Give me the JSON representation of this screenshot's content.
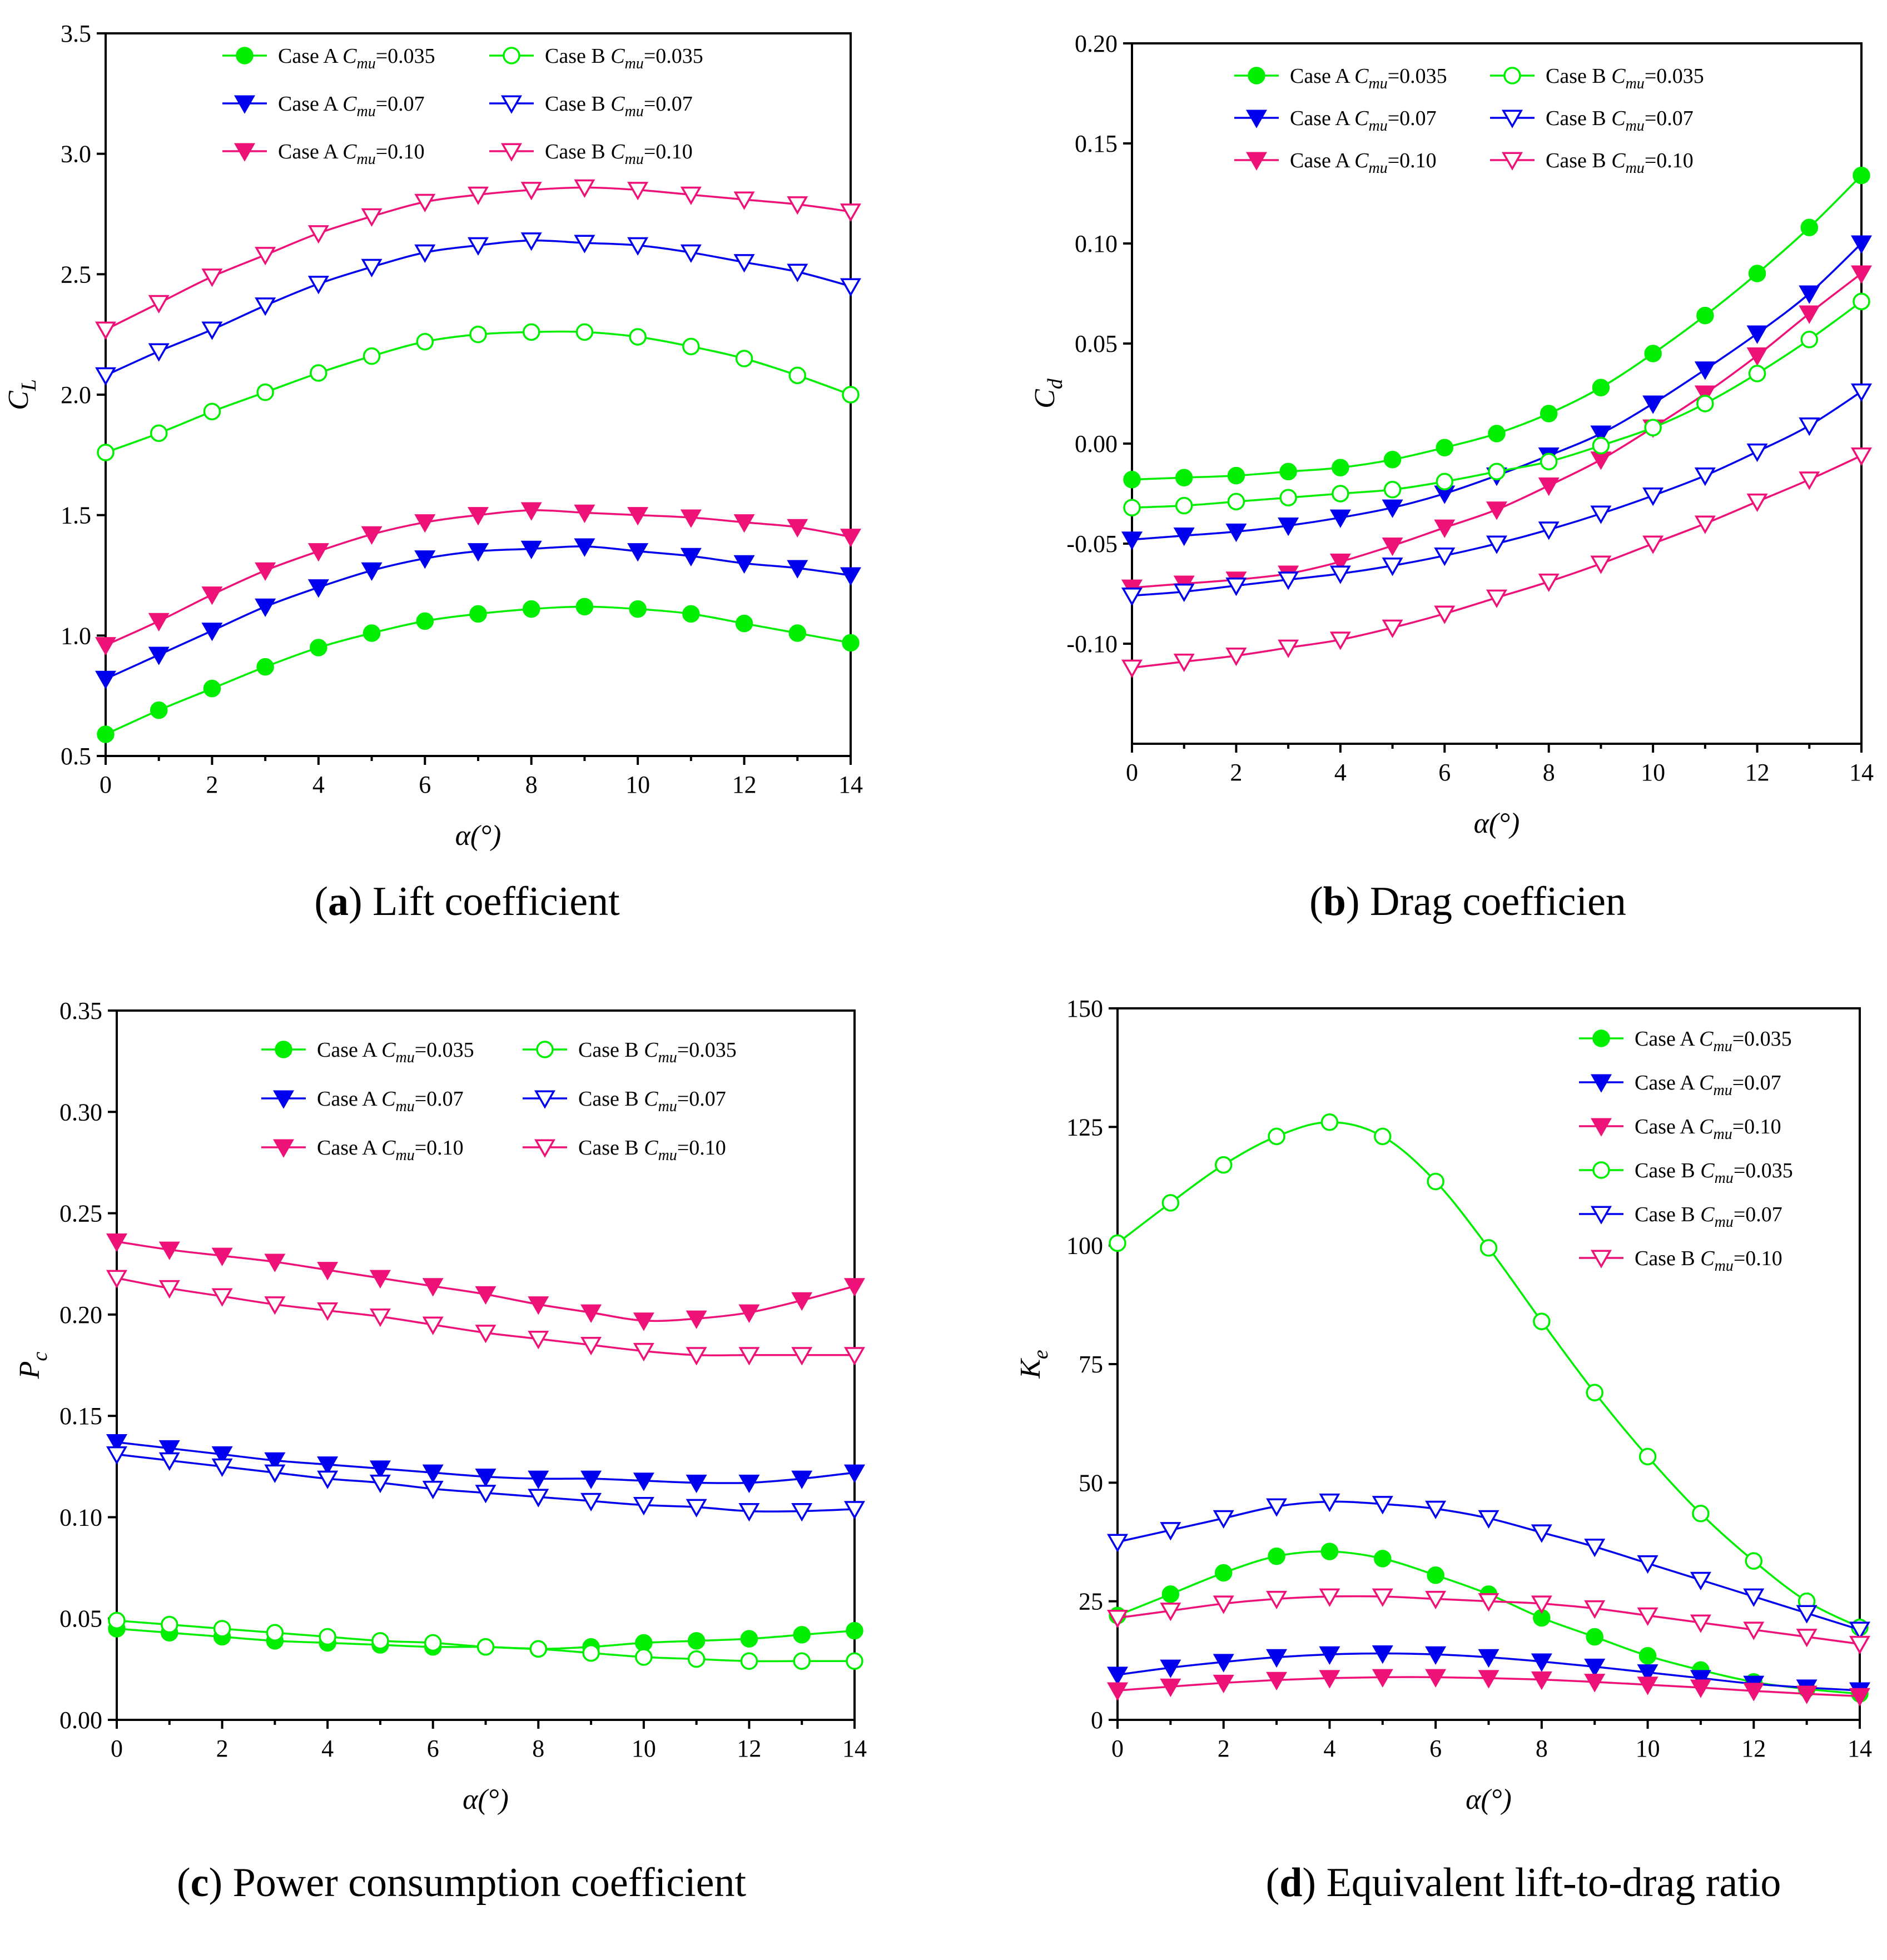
{
  "colors": {
    "green": "#00ee00",
    "blue": "#0000ee",
    "pink": "#ee1177"
  },
  "legend_prefixes": {
    "A": "Case A ",
    "B": "Case B ",
    "cmu_symbol": "C",
    "cmu_sub": "mu"
  },
  "chart_data": [
    {
      "id": "a",
      "type": "line",
      "caption_letter": "a",
      "caption_text": "Lift coefficient",
      "xlabel": "α(°)",
      "ylabel": "C",
      "ylabel_sub": "L",
      "xlim": [
        0,
        14
      ],
      "ylim": [
        0.5,
        3.5
      ],
      "xticks": [
        "0",
        "2",
        "4",
        "6",
        "8",
        "10",
        "12",
        "14"
      ],
      "yticks": [
        "0.5",
        "1.0",
        "1.5",
        "2.0",
        "2.5",
        "3.0",
        "3.5"
      ],
      "legend_position": "top-center, two columns",
      "x": [
        0,
        1,
        2,
        3,
        4,
        5,
        6,
        7,
        8,
        9,
        10,
        11,
        12,
        13,
        14
      ],
      "series": [
        {
          "name": "Case A Cmu=0.035",
          "case": "A",
          "cmu": "=0.035",
          "color": "green",
          "marker": "circle",
          "filled": true,
          "values": [
            0.59,
            0.69,
            0.78,
            0.87,
            0.95,
            1.01,
            1.06,
            1.09,
            1.11,
            1.12,
            1.11,
            1.09,
            1.05,
            1.01,
            0.97
          ]
        },
        {
          "name": "Case A Cmu=0.07",
          "case": "A",
          "cmu": "=0.07",
          "color": "blue",
          "marker": "triangle-down",
          "filled": true,
          "values": [
            0.82,
            0.92,
            1.02,
            1.12,
            1.2,
            1.27,
            1.32,
            1.35,
            1.36,
            1.37,
            1.35,
            1.33,
            1.3,
            1.28,
            1.25
          ]
        },
        {
          "name": "Case A Cmu=0.10",
          "case": "A",
          "cmu": "=0.10",
          "color": "pink",
          "marker": "triangle-down",
          "filled": true,
          "values": [
            0.96,
            1.06,
            1.17,
            1.27,
            1.35,
            1.42,
            1.47,
            1.5,
            1.52,
            1.51,
            1.5,
            1.49,
            1.47,
            1.45,
            1.41
          ]
        },
        {
          "name": "Case B Cmu=0.035",
          "case": "B",
          "cmu": "=0.035",
          "color": "green",
          "marker": "circle",
          "filled": false,
          "values": [
            1.76,
            1.84,
            1.93,
            2.01,
            2.09,
            2.16,
            2.22,
            2.25,
            2.26,
            2.26,
            2.24,
            2.2,
            2.15,
            2.08,
            2.0
          ]
        },
        {
          "name": "Case B Cmu=0.07",
          "case": "B",
          "cmu": "=0.07",
          "color": "blue",
          "marker": "triangle-down",
          "filled": false,
          "values": [
            2.08,
            2.18,
            2.27,
            2.37,
            2.46,
            2.53,
            2.59,
            2.62,
            2.64,
            2.63,
            2.62,
            2.59,
            2.55,
            2.51,
            2.45
          ]
        },
        {
          "name": "Case B Cmu=0.10",
          "case": "B",
          "cmu": "=0.10",
          "color": "pink",
          "marker": "triangle-down",
          "filled": false,
          "values": [
            2.27,
            2.38,
            2.49,
            2.58,
            2.67,
            2.74,
            2.8,
            2.83,
            2.85,
            2.86,
            2.85,
            2.83,
            2.81,
            2.79,
            2.76
          ]
        }
      ]
    },
    {
      "id": "b",
      "type": "line",
      "caption_letter": "b",
      "caption_text": "Drag coefficien",
      "xlabel": "α(°)",
      "ylabel": "C",
      "ylabel_sub": "d",
      "xlim": [
        0,
        14
      ],
      "ylim": [
        -0.15,
        0.2
      ],
      "xticks": [
        "0",
        "2",
        "4",
        "6",
        "8",
        "10",
        "12",
        "14"
      ],
      "yticks": [
        "-0.10",
        "-0.05",
        "0.00",
        "0.05",
        "0.10",
        "0.15",
        "0.20"
      ],
      "yticks_values": [
        -0.1,
        -0.05,
        0.0,
        0.05,
        0.1,
        0.15,
        0.2
      ],
      "legend_position": "top-center, two columns",
      "x": [
        0,
        1,
        2,
        3,
        4,
        5,
        6,
        7,
        8,
        9,
        10,
        11,
        12,
        13,
        14
      ],
      "series": [
        {
          "name": "Case A Cmu=0.035",
          "case": "A",
          "cmu": "=0.035",
          "color": "green",
          "marker": "circle",
          "filled": true,
          "values": [
            -0.018,
            -0.017,
            -0.016,
            -0.014,
            -0.012,
            -0.008,
            -0.002,
            0.005,
            0.015,
            0.028,
            0.045,
            0.064,
            0.085,
            0.108,
            0.134
          ]
        },
        {
          "name": "Case A Cmu=0.07",
          "case": "A",
          "cmu": "=0.07",
          "color": "blue",
          "marker": "triangle-down",
          "filled": true,
          "values": [
            -0.048,
            -0.046,
            -0.044,
            -0.041,
            -0.037,
            -0.032,
            -0.025,
            -0.016,
            -0.006,
            0.005,
            0.02,
            0.037,
            0.055,
            0.075,
            0.1
          ]
        },
        {
          "name": "Case A Cmu=0.10",
          "case": "A",
          "cmu": "=0.10",
          "color": "pink",
          "marker": "triangle-down",
          "filled": true,
          "values": [
            -0.072,
            -0.07,
            -0.068,
            -0.065,
            -0.059,
            -0.051,
            -0.042,
            -0.033,
            -0.021,
            -0.008,
            0.008,
            0.025,
            0.044,
            0.065,
            0.085
          ]
        },
        {
          "name": "Case B Cmu=0.035",
          "case": "B",
          "cmu": "=0.035",
          "color": "green",
          "marker": "circle",
          "filled": false,
          "values": [
            -0.032,
            -0.031,
            -0.029,
            -0.027,
            -0.025,
            -0.023,
            -0.019,
            -0.014,
            -0.009,
            -0.001,
            0.008,
            0.02,
            0.035,
            0.052,
            0.071
          ]
        },
        {
          "name": "Case B Cmu=0.07",
          "case": "B",
          "cmu": "=0.07",
          "color": "blue",
          "marker": "triangle-down",
          "filled": false,
          "values": [
            -0.076,
            -0.074,
            -0.071,
            -0.068,
            -0.065,
            -0.061,
            -0.056,
            -0.05,
            -0.043,
            -0.035,
            -0.026,
            -0.016,
            -0.004,
            0.009,
            0.026
          ]
        },
        {
          "name": "Case B Cmu=0.10",
          "case": "B",
          "cmu": "=0.10",
          "color": "pink",
          "marker": "triangle-down",
          "filled": false,
          "values": [
            -0.112,
            -0.109,
            -0.106,
            -0.102,
            -0.098,
            -0.092,
            -0.085,
            -0.077,
            -0.069,
            -0.06,
            -0.05,
            -0.04,
            -0.029,
            -0.018,
            -0.006
          ]
        }
      ]
    },
    {
      "id": "c",
      "type": "line",
      "caption_letter": "c",
      "caption_text": "Power consumption coefficient",
      "xlabel": "α(°)",
      "ylabel": "P",
      "ylabel_sub": "c",
      "xlim": [
        0,
        14
      ],
      "ylim": [
        0,
        0.35
      ],
      "xticks": [
        "0",
        "2",
        "4",
        "6",
        "8",
        "10",
        "12",
        "14"
      ],
      "yticks": [
        "0.00",
        "0.05",
        "0.10",
        "0.15",
        "0.20",
        "0.25",
        "0.30",
        "0.35"
      ],
      "legend_position": "top-center, two columns",
      "x": [
        0,
        1,
        2,
        3,
        4,
        5,
        6,
        7,
        8,
        9,
        10,
        11,
        12,
        13,
        14
      ],
      "series": [
        {
          "name": "Case A Cmu=0.035",
          "case": "A",
          "cmu": "=0.035",
          "color": "green",
          "marker": "circle",
          "filled": true,
          "values": [
            0.045,
            0.043,
            0.041,
            0.039,
            0.038,
            0.037,
            0.036,
            0.036,
            0.035,
            0.036,
            0.038,
            0.039,
            0.04,
            0.042,
            0.044
          ]
        },
        {
          "name": "Case A Cmu=0.07",
          "case": "A",
          "cmu": "=0.07",
          "color": "blue",
          "marker": "triangle-down",
          "filled": true,
          "values": [
            0.137,
            0.134,
            0.131,
            0.128,
            0.126,
            0.124,
            0.122,
            0.12,
            0.119,
            0.119,
            0.118,
            0.117,
            0.117,
            0.119,
            0.122
          ]
        },
        {
          "name": "Case A Cmu=0.10",
          "case": "A",
          "cmu": "=0.10",
          "color": "pink",
          "marker": "triangle-down",
          "filled": true,
          "values": [
            0.236,
            0.232,
            0.229,
            0.226,
            0.222,
            0.218,
            0.214,
            0.21,
            0.205,
            0.201,
            0.197,
            0.198,
            0.201,
            0.207,
            0.214
          ]
        },
        {
          "name": "Case B Cmu=0.035",
          "case": "B",
          "cmu": "=0.035",
          "color": "green",
          "marker": "circle",
          "filled": false,
          "values": [
            0.049,
            0.047,
            0.045,
            0.043,
            0.041,
            0.039,
            0.038,
            0.036,
            0.035,
            0.033,
            0.031,
            0.03,
            0.029,
            0.029,
            0.029
          ]
        },
        {
          "name": "Case B Cmu=0.07",
          "case": "B",
          "cmu": "=0.07",
          "color": "blue",
          "marker": "triangle-down",
          "filled": false,
          "values": [
            0.131,
            0.128,
            0.125,
            0.122,
            0.119,
            0.117,
            0.114,
            0.112,
            0.11,
            0.108,
            0.106,
            0.105,
            0.103,
            0.103,
            0.104
          ]
        },
        {
          "name": "Case B Cmu=0.10",
          "case": "B",
          "cmu": "=0.10",
          "color": "pink",
          "marker": "triangle-down",
          "filled": false,
          "values": [
            0.218,
            0.213,
            0.209,
            0.205,
            0.202,
            0.199,
            0.195,
            0.191,
            0.188,
            0.185,
            0.182,
            0.18,
            0.18,
            0.18,
            0.18
          ]
        }
      ]
    },
    {
      "id": "d",
      "type": "line",
      "caption_letter": "d",
      "caption_text": "Equivalent lift-to-drag ratio",
      "xlabel": "α(°)",
      "ylabel": "K",
      "ylabel_sub": "e",
      "xlim": [
        0,
        14
      ],
      "ylim": [
        0,
        150
      ],
      "xticks": [
        "0",
        "2",
        "4",
        "6",
        "8",
        "10",
        "12",
        "14"
      ],
      "yticks": [
        "0",
        "25",
        "50",
        "75",
        "100",
        "125",
        "150"
      ],
      "legend_position": "top-right, one column",
      "x": [
        0,
        1,
        2,
        3,
        4,
        5,
        6,
        7,
        8,
        9,
        10,
        11,
        12,
        13,
        14
      ],
      "series": [
        {
          "name": "Case A Cmu=0.035",
          "case": "A",
          "cmu": "=0.035",
          "color": "green",
          "marker": "circle",
          "filled": true,
          "values": [
            22,
            26.5,
            31,
            34.5,
            35.5,
            34,
            30.5,
            26.5,
            21.5,
            17.5,
            13.5,
            10.5,
            8,
            6.5,
            5.5
          ]
        },
        {
          "name": "Case A Cmu=0.07",
          "case": "A",
          "cmu": "=0.07",
          "color": "blue",
          "marker": "triangle-down",
          "filled": true,
          "values": [
            9.5,
            11,
            12.2,
            13.2,
            13.8,
            14,
            13.8,
            13.2,
            12.3,
            11.2,
            10,
            8.8,
            7.6,
            6.8,
            6.2
          ]
        },
        {
          "name": "Case A Cmu=0.10",
          "case": "A",
          "cmu": "=0.10",
          "color": "pink",
          "marker": "triangle-down",
          "filled": true,
          "values": [
            6.2,
            7,
            7.8,
            8.4,
            8.8,
            9,
            9,
            8.8,
            8.5,
            8,
            7.4,
            6.8,
            6.1,
            5.5,
            5
          ]
        },
        {
          "name": "Case B Cmu=0.035",
          "case": "B",
          "cmu": "=0.035",
          "color": "green",
          "marker": "circle",
          "filled": false,
          "values": [
            100.5,
            109,
            117,
            123,
            126,
            123,
            113.5,
            99.5,
            84,
            69,
            55.5,
            43.5,
            33.5,
            25,
            19.5
          ]
        },
        {
          "name": "Case B Cmu=0.07",
          "case": "B",
          "cmu": "=0.07",
          "color": "blue",
          "marker": "triangle-down",
          "filled": false,
          "values": [
            37.5,
            40,
            42.5,
            45,
            46,
            45.5,
            44.5,
            42.5,
            39.5,
            36.5,
            33,
            29.5,
            26,
            22.5,
            19
          ]
        },
        {
          "name": "Case B Cmu=0.10",
          "case": "B",
          "cmu": "=0.10",
          "color": "pink",
          "marker": "triangle-down",
          "filled": false,
          "values": [
            21.5,
            23,
            24.5,
            25.5,
            26,
            26,
            25.5,
            25,
            24.5,
            23.5,
            22,
            20.5,
            19,
            17.5,
            16
          ]
        }
      ]
    }
  ]
}
